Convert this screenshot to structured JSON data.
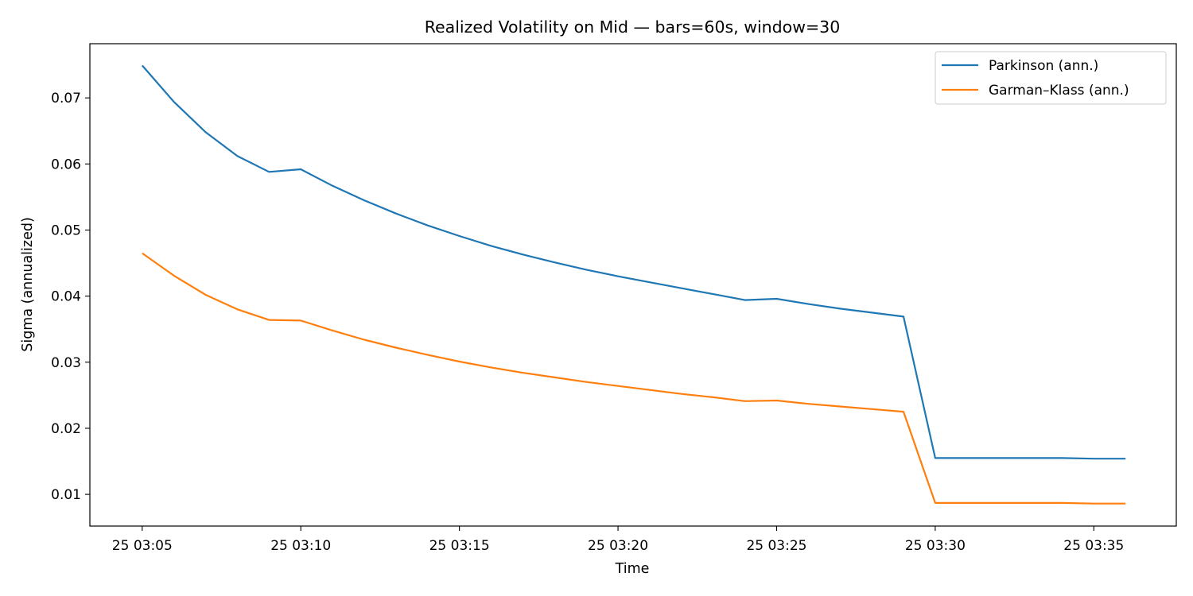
{
  "chart_data": {
    "type": "line",
    "title": "Realized Volatility on Mid — bars=60s, window=30",
    "xlabel": "Time",
    "ylabel": "Sigma (annualized)",
    "x_unit": "minute of hour (day 25, hour 03)",
    "xlim": [
      3.35,
      37.6
    ],
    "ylim": [
      0.0052,
      0.0782
    ],
    "x_ticks": [
      {
        "value": 5,
        "label": "25 03:05"
      },
      {
        "value": 10,
        "label": "25 03:10"
      },
      {
        "value": 15,
        "label": "25 03:15"
      },
      {
        "value": 20,
        "label": "25 03:20"
      },
      {
        "value": 25,
        "label": "25 03:25"
      },
      {
        "value": 30,
        "label": "25 03:30"
      },
      {
        "value": 35,
        "label": "25 03:35"
      }
    ],
    "y_ticks": [
      {
        "value": 0.01,
        "label": "0.01"
      },
      {
        "value": 0.02,
        "label": "0.02"
      },
      {
        "value": 0.03,
        "label": "0.03"
      },
      {
        "value": 0.04,
        "label": "0.04"
      },
      {
        "value": 0.05,
        "label": "0.05"
      },
      {
        "value": 0.06,
        "label": "0.06"
      },
      {
        "value": 0.07,
        "label": "0.07"
      }
    ],
    "grid": false,
    "legend_position": "top-right",
    "series": [
      {
        "name": "Parkinson (ann.)",
        "color": "#1f77b4",
        "x": [
          5,
          6,
          7,
          8,
          9,
          10,
          11,
          12,
          13,
          14,
          15,
          16,
          17,
          18,
          19,
          20,
          21,
          22,
          23,
          24,
          25,
          26,
          27,
          28,
          29,
          30,
          31,
          32,
          33,
          34,
          35,
          36
        ],
        "values": [
          0.0749,
          0.0694,
          0.0648,
          0.0612,
          0.0588,
          0.0592,
          0.0567,
          0.0545,
          0.0525,
          0.0507,
          0.0491,
          0.0476,
          0.0463,
          0.0451,
          0.044,
          0.043,
          0.0421,
          0.0412,
          0.0403,
          0.0394,
          0.0396,
          0.0388,
          0.0381,
          0.0375,
          0.0369,
          0.0155,
          0.0155,
          0.0155,
          0.0155,
          0.0155,
          0.0154,
          0.0154
        ]
      },
      {
        "name": "Garman–Klass (ann.)",
        "color": "#ff7f0e",
        "x": [
          5,
          6,
          7,
          8,
          9,
          10,
          11,
          12,
          13,
          14,
          15,
          16,
          17,
          18,
          19,
          20,
          21,
          22,
          23,
          24,
          25,
          26,
          27,
          28,
          29,
          30,
          31,
          32,
          33,
          34,
          35,
          36
        ],
        "values": [
          0.0465,
          0.0431,
          0.0402,
          0.038,
          0.0364,
          0.0363,
          0.0348,
          0.0334,
          0.0322,
          0.0311,
          0.0301,
          0.0292,
          0.0284,
          0.0277,
          0.027,
          0.0264,
          0.0258,
          0.0252,
          0.0247,
          0.0241,
          0.0242,
          0.0237,
          0.0233,
          0.0229,
          0.0225,
          0.0087,
          0.0087,
          0.0087,
          0.0087,
          0.0087,
          0.0086,
          0.0086
        ]
      }
    ]
  }
}
